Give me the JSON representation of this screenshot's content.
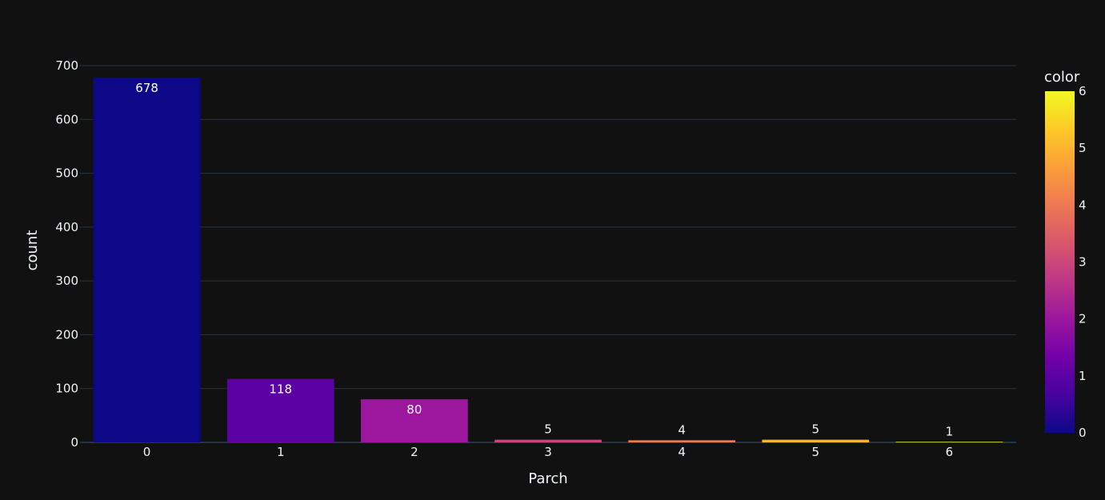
{
  "chart_data": {
    "type": "bar",
    "xlabel": "Parch",
    "ylabel": "count",
    "categories": [
      "0",
      "1",
      "2",
      "3",
      "4",
      "5",
      "6"
    ],
    "values": [
      678,
      118,
      80,
      5,
      4,
      5,
      1
    ],
    "color_values": [
      0,
      1,
      2,
      3,
      4,
      5,
      6
    ],
    "ylim": [
      0,
      700
    ],
    "yticks": [
      0,
      100,
      200,
      300,
      400,
      500,
      600,
      700
    ],
    "grid": true,
    "colorbar": {
      "title": "color",
      "range": [
        0,
        6
      ],
      "ticks": [
        0,
        1,
        2,
        3,
        4,
        5,
        6
      ],
      "placement": "right"
    }
  },
  "colors": {
    "background": "#111111",
    "grid": "#283442",
    "text": "#f2f5fa",
    "colorscale": [
      "#0d0887",
      "#46039f",
      "#7201a8",
      "#9c179e",
      "#bd3786",
      "#d8576b",
      "#ed7953",
      "#fb9f3a",
      "#fdca26",
      "#f0f921"
    ]
  }
}
